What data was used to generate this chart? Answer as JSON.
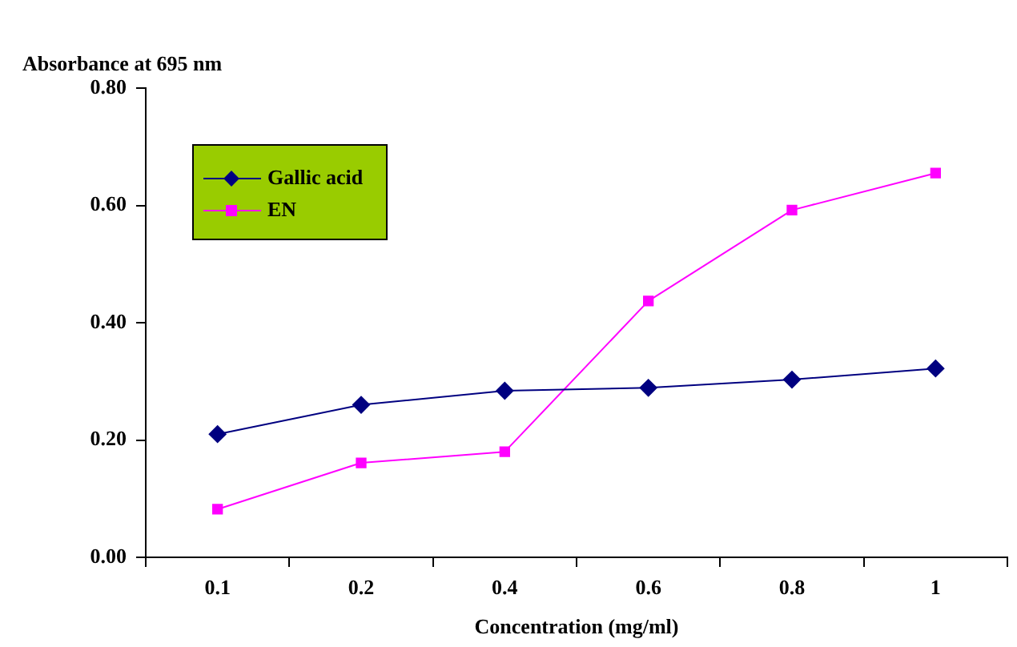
{
  "chart_data": {
    "type": "line",
    "ylabel": "Absorbance at 695 nm",
    "xlabel": "Concentration (mg/ml)",
    "categories": [
      "0.1",
      "0.2",
      "0.4",
      "0.6",
      "0.8",
      "1"
    ],
    "series": [
      {
        "name": "Gallic acid",
        "color": "#000080",
        "marker": "diamond",
        "values": [
          0.21,
          0.26,
          0.284,
          0.289,
          0.303,
          0.322
        ]
      },
      {
        "name": "EN",
        "color": "#ff00ff",
        "marker": "square",
        "values": [
          0.082,
          0.161,
          0.18,
          0.437,
          0.592,
          0.655
        ]
      }
    ],
    "ylim": [
      0,
      0.8
    ],
    "yticks": [
      {
        "value": 0,
        "label": "0.00"
      },
      {
        "value": 0.2,
        "label": "0.20"
      },
      {
        "value": 0.4,
        "label": "0.40"
      },
      {
        "value": 0.6,
        "label": "0.60"
      },
      {
        "value": 0.8,
        "label": "0.80"
      }
    ],
    "grid": false,
    "legend": "top left",
    "line_style": "solid"
  }
}
